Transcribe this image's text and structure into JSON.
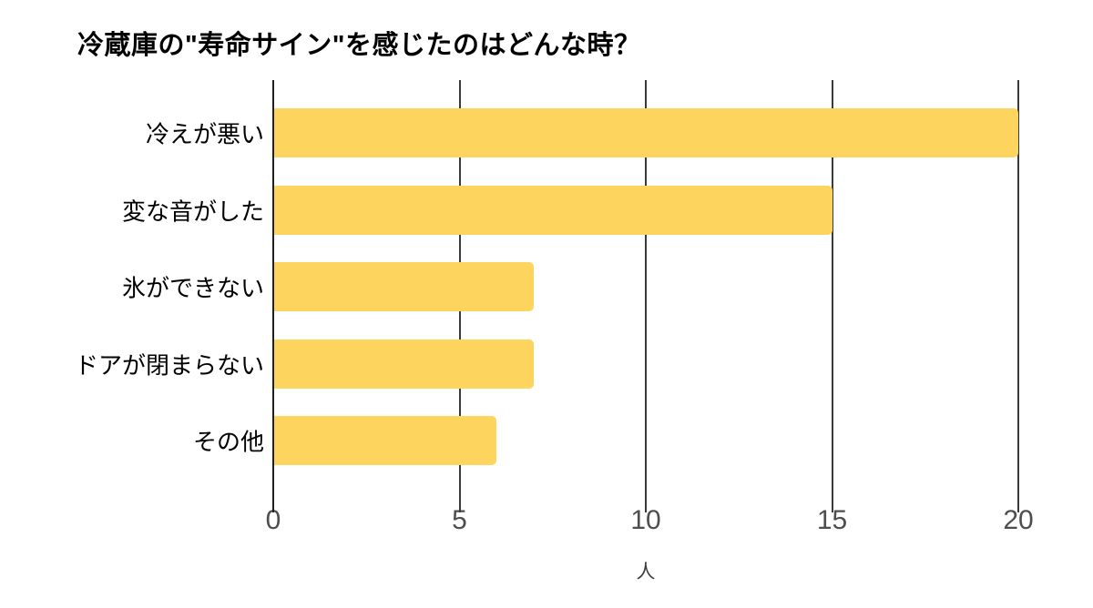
{
  "chart": {
    "title": "冷蔵庫の\"寿命サイン\"を感じたのはどんな時？",
    "xlabel": "人"
  },
  "chart_data": {
    "type": "bar",
    "orientation": "horizontal",
    "title": "冷蔵庫の\"寿命サイン\"を感じたのはどんな時？",
    "categories": [
      "冷えが悪い",
      "変な音がした",
      "氷ができない",
      "ドアが閉まらない",
      "その他"
    ],
    "values": [
      20,
      15,
      7,
      7,
      6
    ],
    "xlabel": "人",
    "ylabel": "",
    "xlim": [
      0,
      20
    ],
    "xticks": [
      0,
      5,
      10,
      15,
      20
    ],
    "grid": true,
    "legend": "none",
    "bar_color": "#FCD45E",
    "gridline_color": "#3a3a3a",
    "axis_line_color": "#1f1f1f",
    "tick_label_color": "#4e4e4e",
    "title_color": "#000000",
    "category_label_color": "#000000"
  }
}
